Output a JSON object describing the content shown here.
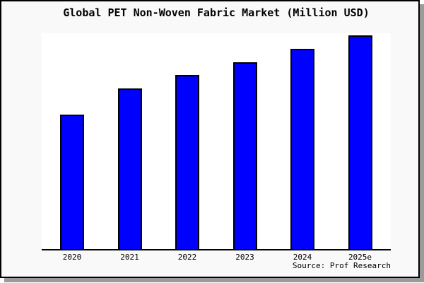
{
  "chart_data": {
    "type": "bar",
    "title": "Global PET Non-Woven Fabric Market (Million USD)",
    "categories": [
      "2020",
      "2021",
      "2022",
      "2023",
      "2024",
      "2025e"
    ],
    "values": [
      62.9,
      75.2,
      81.5,
      87.4,
      93.7,
      100
    ],
    "xlabel": "",
    "ylabel": "",
    "ylim": [
      0,
      101
    ],
    "grid": false,
    "legend": false,
    "y_axis_visible": false,
    "values_are_relative_estimates": true,
    "bar_color": "#0000ff",
    "bar_edge_color": "#000000",
    "plot_background": "#ffffff",
    "figure_background": "#f9f9f9",
    "frame_border_color": "#000000",
    "shadow_color": "#9b9b9b"
  },
  "source": {
    "label": "Source: Prof Research"
  }
}
